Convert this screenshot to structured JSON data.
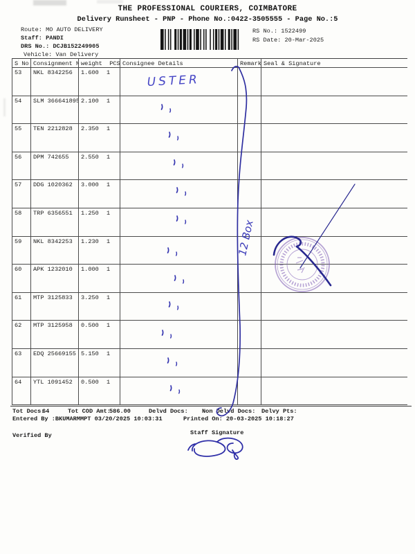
{
  "header": {
    "title": "THE PROFESSIONAL COURIERS, COIMBATORE",
    "subtitle": "Delivery Runsheet - PNP - Phone No.:0422-3505555 - Page No.:5",
    "route_label": "Route:",
    "route": "MO AUTO DELIVERY",
    "staff_label": "Staff:",
    "staff": "PANDI",
    "drs_label": "DRS No.:",
    "drs_no": "DCJB152249905",
    "vehicle_label": "Vehicle:",
    "vehicle": "Van Delivery",
    "rs_no_label": "RS No.:",
    "rs_no": "1522499",
    "rs_date_label": "RS Date:",
    "rs_date": "20-Mar-2025"
  },
  "table": {
    "columns": [
      "S No",
      "Consignment No",
      "weight  PCS",
      "Consignee Details",
      "Remarks",
      "Seal & Signature"
    ],
    "rows": [
      {
        "s_no": "53",
        "consignment_no": "NKL 8342256",
        "weight": "1.600",
        "pcs": "1"
      },
      {
        "s_no": "54",
        "consignment_no": "SLM 366641895",
        "weight": "2.100",
        "pcs": "1"
      },
      {
        "s_no": "55",
        "consignment_no": "TEN 2212828",
        "weight": "2.350",
        "pcs": "1"
      },
      {
        "s_no": "56",
        "consignment_no": "DPM 742655",
        "weight": "2.550",
        "pcs": "1"
      },
      {
        "s_no": "57",
        "consignment_no": "DDG 1020362",
        "weight": "3.000",
        "pcs": "1"
      },
      {
        "s_no": "58",
        "consignment_no": "TRP 6356551",
        "weight": "1.250",
        "pcs": "1"
      },
      {
        "s_no": "59",
        "consignment_no": "NKL 8342253",
        "weight": "1.230",
        "pcs": "1"
      },
      {
        "s_no": "60",
        "consignment_no": "APK 1232010",
        "weight": "1.000",
        "pcs": "1"
      },
      {
        "s_no": "61",
        "consignment_no": "MTP 3125833",
        "weight": "3.250",
        "pcs": "1"
      },
      {
        "s_no": "62",
        "consignment_no": "MTP 3125958",
        "weight": "0.500",
        "pcs": "1"
      },
      {
        "s_no": "63",
        "consignment_no": "EDQ 25669155",
        "weight": "5.150",
        "pcs": "1"
      },
      {
        "s_no": "64",
        "consignment_no": "YTL 1091452",
        "weight": "0.500",
        "pcs": "1"
      }
    ]
  },
  "annotations": {
    "row53_note": "USTER",
    "remarks_note": "12 Box"
  },
  "totals": {
    "tot_docs_label": "Tot Docs:",
    "tot_docs_value": "64",
    "tot_cod_label": "Tot COD Amt:",
    "tot_cod_value": "586.00",
    "delvd_docs_label": "Delvd Docs:",
    "non_delvd_docs_label": "Non Delvd Docs:",
    "delvy_pts_label": "Delvy Pts:"
  },
  "audit": {
    "entered_by": "Entered By :BKUMARMMPT 03/20/2025 10:03:31",
    "printed_on": "Printed On: 20-03-2025 10:18:27"
  },
  "signature_block": {
    "verified_by_label": "Verified By",
    "staff_signature_label": "Staff Signature"
  },
  "colors": {
    "ink_blue": "#3535b0",
    "stamp_purple": "#7d5bb5",
    "print_black": "#1c1c1c"
  }
}
